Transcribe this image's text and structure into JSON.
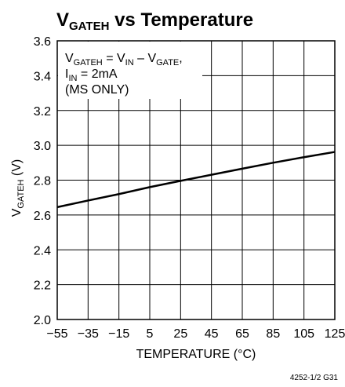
{
  "chart_data": {
    "type": "line",
    "title": {
      "main": "V",
      "sub": "GATEH",
      "rest": " vs Temperature"
    },
    "xlabel": "TEMPERATURE (°C)",
    "ylabel": {
      "main": "V",
      "sub": "GATEH",
      "rest": " (V)"
    },
    "xlim": [
      -55,
      125
    ],
    "ylim": [
      2.0,
      3.6
    ],
    "x_ticks": [
      -55,
      -35,
      -15,
      5,
      25,
      45,
      65,
      85,
      105,
      125
    ],
    "x_tick_labels": [
      "−55",
      "−35",
      "−15",
      "5",
      "25",
      "45",
      "65",
      "85",
      "105",
      "125"
    ],
    "y_ticks": [
      2.0,
      2.2,
      2.4,
      2.6,
      2.8,
      3.0,
      3.2,
      3.4,
      3.6
    ],
    "y_tick_labels": [
      "2.0",
      "2.2",
      "2.4",
      "2.6",
      "2.8",
      "3.0",
      "3.2",
      "3.4",
      "3.6"
    ],
    "grid": true,
    "series": [
      {
        "x": [
          -55,
          -35,
          -15,
          5,
          25,
          45,
          65,
          85,
          105,
          125
        ],
        "y": [
          2.645,
          2.683,
          2.72,
          2.76,
          2.796,
          2.831,
          2.866,
          2.9,
          2.932,
          2.962
        ]
      }
    ],
    "annotation": {
      "line1": [
        {
          "t": "V",
          "sub": false
        },
        {
          "t": "GATEH",
          "sub": true
        },
        {
          "t": " = V",
          "sub": false
        },
        {
          "t": "IN",
          "sub": true
        },
        {
          "t": " – V",
          "sub": false
        },
        {
          "t": "GATE",
          "sub": true
        },
        {
          "t": ",",
          "sub": false
        }
      ],
      "line2": [
        {
          "t": "I",
          "sub": false
        },
        {
          "t": "IN",
          "sub": true
        },
        {
          "t": " = 2mA",
          "sub": false
        }
      ],
      "line3": "(MS ONLY)"
    },
    "figure_id": "4252-1/2 G31",
    "line_color": "#000000",
    "grid_color": "#000000"
  }
}
